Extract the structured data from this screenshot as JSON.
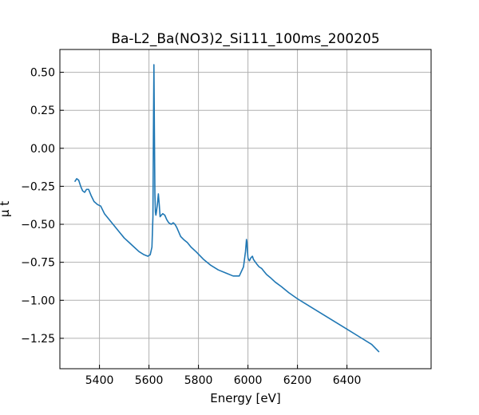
{
  "chart_data": {
    "type": "line",
    "title": "Ba-L2_Ba(NO3)2_Si111_100ms_200205",
    "xlabel": "Energy [eV]",
    "ylabel": "μ t",
    "xlim": [
      5240,
      6740
    ],
    "ylim": [
      -1.45,
      0.65
    ],
    "xticks": [
      5400,
      5600,
      5800,
      6000,
      6200,
      6400
    ],
    "xtick_labels": [
      "5400",
      "5600",
      "5800",
      "6000",
      "6200",
      "6400"
    ],
    "yticks": [
      0.5,
      0.25,
      0.0,
      -0.25,
      -0.5,
      -0.75,
      -1.0,
      -1.25
    ],
    "ytick_labels": [
      "0.50",
      "0.25",
      "0.00",
      "−0.25",
      "−0.50",
      "−0.75",
      "−1.00",
      "−1.25"
    ],
    "grid": true,
    "tick_direction": "in",
    "series": [
      {
        "color": "#1f77b4",
        "x": [
          5300,
          5308,
          5316,
          5324,
          5332,
          5340,
          5348,
          5356,
          5366,
          5378,
          5392,
          5405,
          5420,
          5440,
          5460,
          5480,
          5500,
          5520,
          5540,
          5560,
          5580,
          5595,
          5605,
          5612,
          5616,
          5618,
          5620,
          5622,
          5624,
          5626,
          5628,
          5630,
          5634,
          5638,
          5642,
          5645,
          5650,
          5656,
          5664,
          5672,
          5680,
          5690,
          5698,
          5705,
          5712,
          5720,
          5728,
          5740,
          5755,
          5770,
          5790,
          5820,
          5850,
          5880,
          5910,
          5940,
          5965,
          5982,
          5990,
          5994,
          5996,
          5998,
          6000,
          6002,
          6006,
          6012,
          6018,
          6022,
          6026,
          6035,
          6045,
          6055,
          6065,
          6075,
          6090,
          6110,
          6135,
          6165,
          6200,
          6250,
          6300,
          6350,
          6400,
          6450,
          6500,
          6530
        ],
        "y": [
          -0.22,
          -0.2,
          -0.21,
          -0.25,
          -0.28,
          -0.29,
          -0.27,
          -0.27,
          -0.31,
          -0.35,
          -0.37,
          -0.38,
          -0.43,
          -0.47,
          -0.51,
          -0.55,
          -0.59,
          -0.62,
          -0.65,
          -0.68,
          -0.7,
          -0.71,
          -0.7,
          -0.65,
          -0.45,
          0.1,
          0.55,
          0.1,
          -0.3,
          -0.42,
          -0.44,
          -0.42,
          -0.37,
          -0.3,
          -0.38,
          -0.45,
          -0.44,
          -0.43,
          -0.44,
          -0.47,
          -0.49,
          -0.5,
          -0.49,
          -0.5,
          -0.52,
          -0.55,
          -0.58,
          -0.6,
          -0.62,
          -0.65,
          -0.68,
          -0.73,
          -0.77,
          -0.8,
          -0.82,
          -0.84,
          -0.84,
          -0.78,
          -0.68,
          -0.6,
          -0.62,
          -0.68,
          -0.72,
          -0.73,
          -0.74,
          -0.72,
          -0.71,
          -0.73,
          -0.74,
          -0.76,
          -0.78,
          -0.79,
          -0.81,
          -0.83,
          -0.85,
          -0.88,
          -0.91,
          -0.95,
          -0.99,
          -1.04,
          -1.09,
          -1.14,
          -1.19,
          -1.24,
          -1.29,
          -1.34
        ]
      }
    ]
  }
}
